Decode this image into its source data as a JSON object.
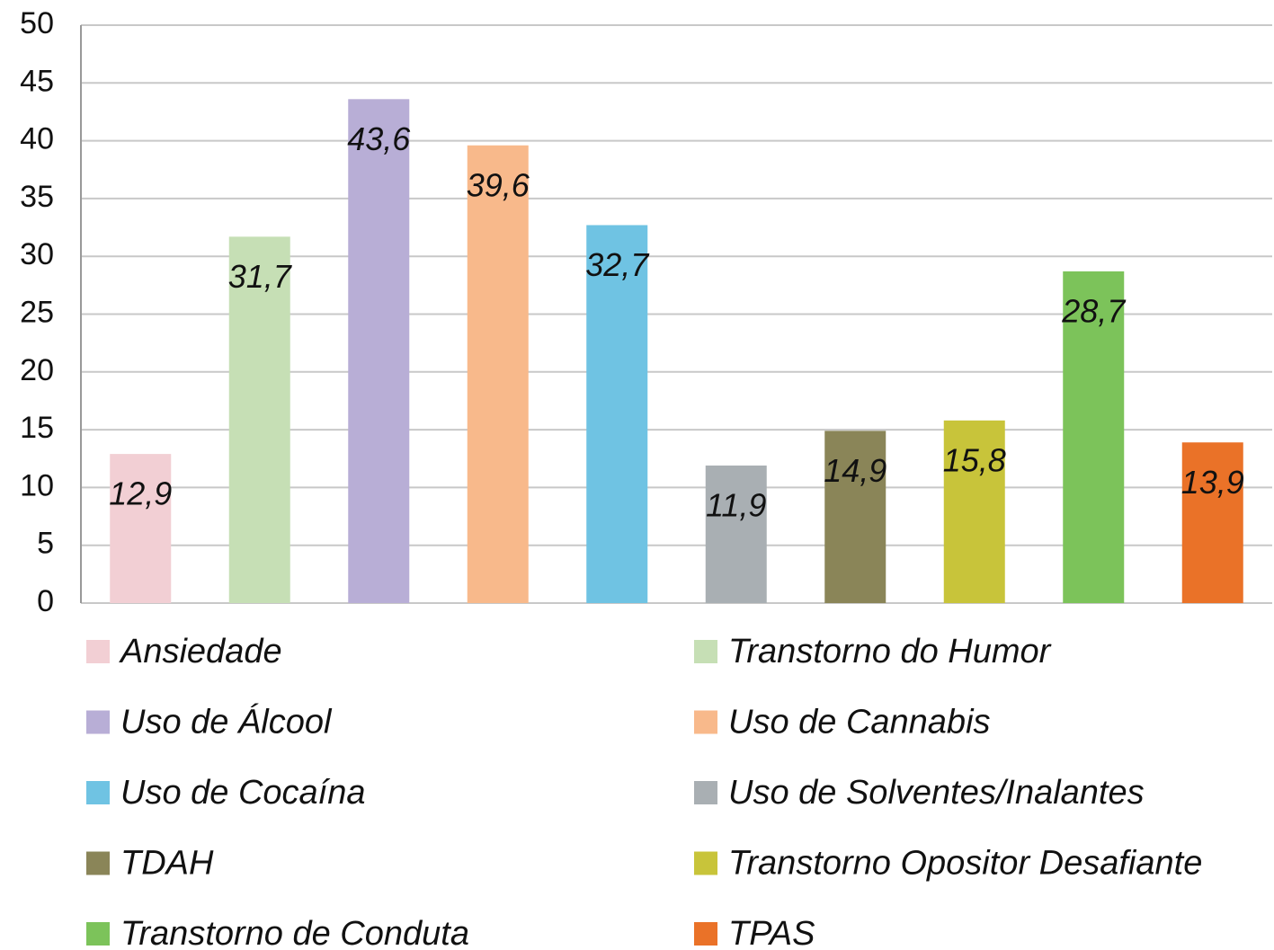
{
  "chart_data": {
    "type": "bar",
    "series": [
      {
        "name": "Ansiedade",
        "color": "#f2cfd4",
        "values": [
          12.9
        ],
        "value_labels": [
          "12,9"
        ]
      },
      {
        "name": "Transtorno do Humor",
        "color": "#c6dfb5",
        "values": [
          31.7
        ],
        "value_labels": [
          "31,7"
        ]
      },
      {
        "name": "Uso de Álcool",
        "color": "#b8aed6",
        "values": [
          43.6
        ],
        "value_labels": [
          "43,6"
        ]
      },
      {
        "name": "Uso de Cannabis",
        "color": "#f8b98b",
        "values": [
          39.6
        ],
        "value_labels": [
          "39,6"
        ]
      },
      {
        "name": "Uso de Cocaína",
        "color": "#6fc3e3",
        "values": [
          32.7
        ],
        "value_labels": [
          "32,7"
        ]
      },
      {
        "name": "Uso de Solventes/Inalantes",
        "color": "#a9afb3",
        "values": [
          11.9
        ],
        "value_labels": [
          "11,9"
        ]
      },
      {
        "name": "TDAH",
        "color": "#8a8558",
        "values": [
          14.9
        ],
        "value_labels": [
          "14,9"
        ]
      },
      {
        "name": "Transtorno Opositor Desafiante",
        "color": "#c8c43a",
        "values": [
          15.8
        ],
        "value_labels": [
          "15,8"
        ]
      },
      {
        "name": "Transtorno de Conduta",
        "color": "#7cc35a",
        "values": [
          28.7
        ],
        "value_labels": [
          "28,7"
        ]
      },
      {
        "name": "TPAS",
        "color": "#ea7228",
        "values": [
          13.9
        ],
        "value_labels": [
          "13,9"
        ]
      }
    ],
    "ylim": [
      0,
      50
    ],
    "yticks": [
      0,
      5,
      10,
      15,
      20,
      25,
      30,
      35,
      40,
      45,
      50
    ],
    "grid": true,
    "legend": "bottom"
  }
}
